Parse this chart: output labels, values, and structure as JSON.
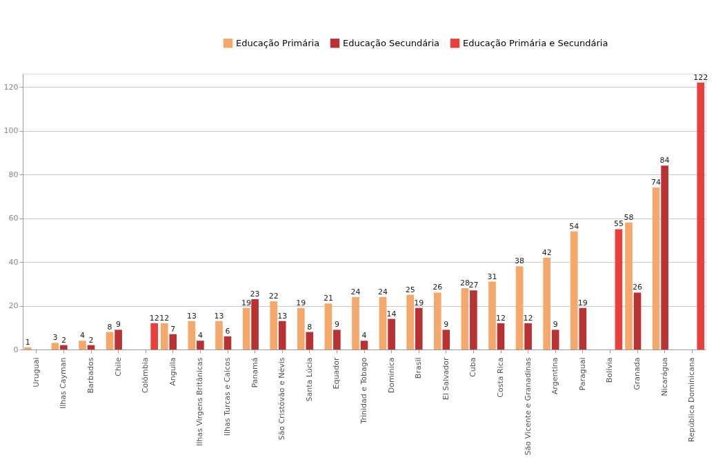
{
  "chart_data": {
    "type": "bar",
    "categories": [
      "Uruguai",
      "Ilhas Cayman",
      "Barbados",
      "Chile",
      "Colômbia",
      "Anguila",
      "Ilhas Virgens Britânicas",
      "Ilhas Turcas e Caicos",
      "Panamá",
      "São Cristóvão e Névis",
      "Santa Lúcia",
      "Equador",
      "Trinidad e Tobago",
      "Dominica",
      "Brasil",
      "El Salvador",
      "Cuba",
      "Costa Rica",
      "São Vicente e Granadinas",
      "Argentina",
      "Paraguai",
      "Bolívia",
      "Granada",
      "Nicarágua",
      "República Dominicana"
    ],
    "series": [
      {
        "name": "Educação Primária",
        "color": "#f5a86b",
        "values": [
          1,
          3,
          4,
          8,
          null,
          12,
          13,
          13,
          19,
          22,
          19,
          21,
          24,
          24,
          25,
          26,
          28,
          31,
          38,
          42,
          54,
          null,
          58,
          74,
          null
        ]
      },
      {
        "name": "Educação Secundária",
        "color": "#b83234",
        "values": [
          null,
          2,
          2,
          9,
          null,
          7,
          4,
          6,
          23,
          13,
          8,
          9,
          4,
          14,
          19,
          9,
          27,
          12,
          12,
          9,
          19,
          null,
          26,
          84,
          null
        ]
      },
      {
        "name": "Educação Primária e Secundária",
        "color": "#e8403d",
        "values": [
          null,
          null,
          null,
          null,
          12,
          null,
          null,
          null,
          null,
          null,
          null,
          null,
          null,
          null,
          null,
          null,
          null,
          null,
          null,
          null,
          null,
          55,
          null,
          null,
          122
        ]
      }
    ],
    "ylim": [
      0,
      126
    ],
    "yticks": [
      0,
      20,
      40,
      60,
      80,
      100,
      120
    ],
    "grid": "y",
    "legend": "top right",
    "data_labels": true
  }
}
